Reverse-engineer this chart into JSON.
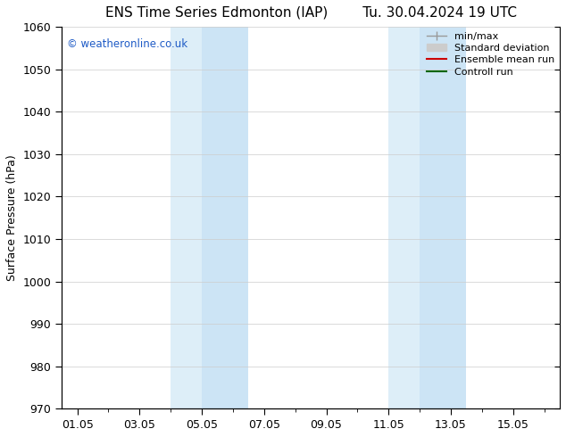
{
  "title_left": "ENS Time Series Edmonton (IAP)",
  "title_right": "Tu. 30.04.2024 19 UTC",
  "ylabel": "Surface Pressure (hPa)",
  "ylim": [
    970,
    1060
  ],
  "yticks": [
    970,
    980,
    990,
    1000,
    1010,
    1020,
    1030,
    1040,
    1050,
    1060
  ],
  "xlim_start": -0.5,
  "xlim_end": 15.5,
  "xtick_labels": [
    "01.05",
    "03.05",
    "05.05",
    "07.05",
    "09.05",
    "11.05",
    "13.05",
    "15.05"
  ],
  "xtick_positions": [
    0,
    2,
    4,
    6,
    8,
    10,
    12,
    14
  ],
  "shaded_bands": [
    {
      "xmin": 3.0,
      "xmax": 4.0,
      "color": "#ddeef8"
    },
    {
      "xmin": 4.0,
      "xmax": 5.5,
      "color": "#cce4f5"
    },
    {
      "xmin": 10.0,
      "xmax": 11.0,
      "color": "#ddeef8"
    },
    {
      "xmin": 11.0,
      "xmax": 12.5,
      "color": "#cce4f5"
    }
  ],
  "watermark_text": "© weatheronline.co.uk",
  "watermark_color": "#1e5bc6",
  "grid_color": "#cccccc",
  "bg_color": "#ffffff",
  "title_fontsize": 11,
  "ylabel_fontsize": 9,
  "tick_fontsize": 9,
  "legend_fontsize": 8
}
